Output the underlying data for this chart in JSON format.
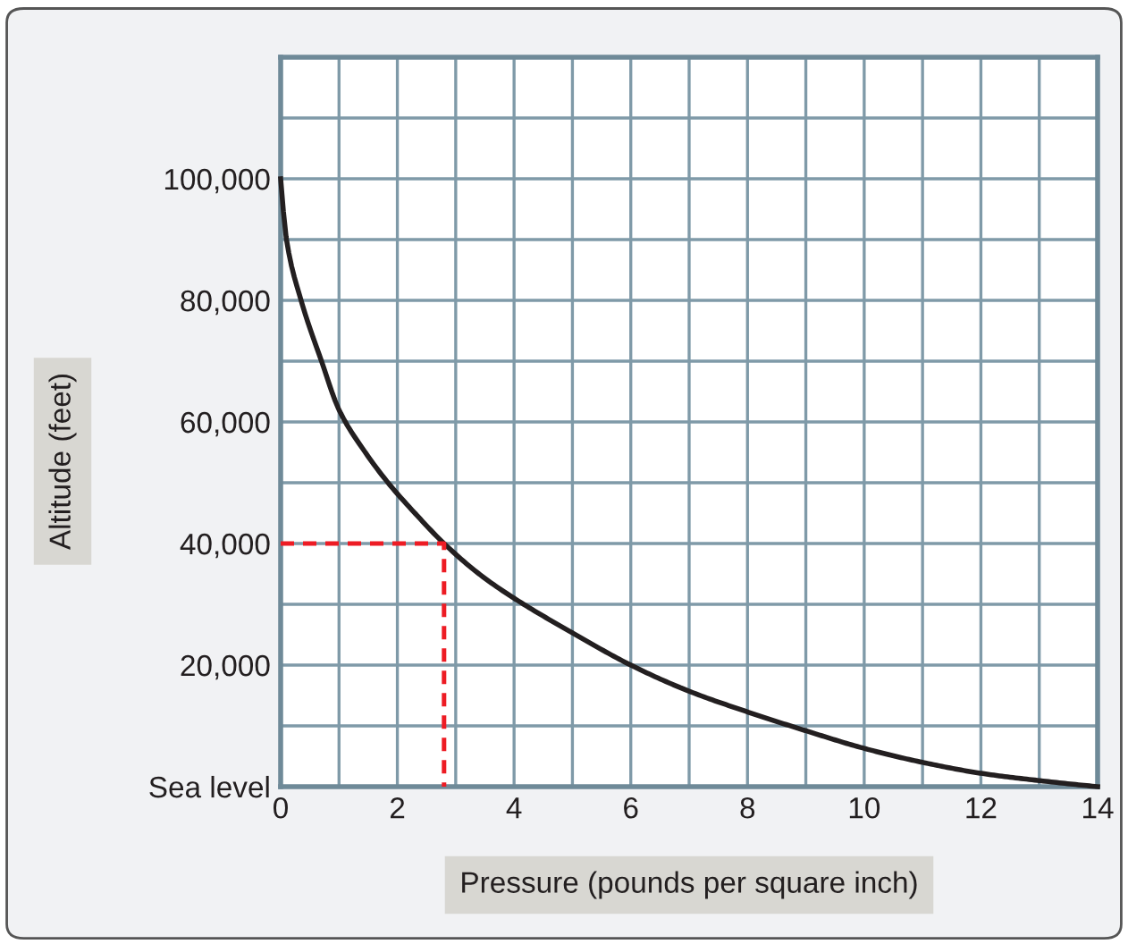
{
  "chart_data": {
    "type": "line",
    "xlabel": "Pressure (pounds per square inch)",
    "ylabel": "Altitude (feet)",
    "xlim": [
      0,
      14
    ],
    "ylim": [
      0,
      120000
    ],
    "xticks": [
      0,
      {
        "value": 1,
        "label": null
      },
      2,
      {
        "value": 3,
        "label": null
      },
      4,
      {
        "value": 5,
        "label": null
      },
      6,
      {
        "value": 7,
        "label": null
      },
      8,
      {
        "value": 9,
        "label": null
      },
      10,
      {
        "value": 11,
        "label": null
      },
      12,
      {
        "value": 13,
        "label": null
      },
      14
    ],
    "yticks": [
      {
        "value": 0,
        "label": "Sea level"
      },
      {
        "value": 10000,
        "label": null
      },
      {
        "value": 20000,
        "label": "20,000"
      },
      {
        "value": 30000,
        "label": null
      },
      {
        "value": 40000,
        "label": "40,000"
      },
      {
        "value": 50000,
        "label": null
      },
      {
        "value": 60000,
        "label": "60,000"
      },
      {
        "value": 70000,
        "label": null
      },
      {
        "value": 80000,
        "label": "80,000"
      },
      {
        "value": 90000,
        "label": null
      },
      {
        "value": 100000,
        "label": "100,000"
      },
      {
        "value": 110000,
        "label": null
      },
      {
        "value": 120000,
        "label": null
      }
    ],
    "grid": true,
    "series": [
      {
        "color": "#231f20",
        "line_style": "solid",
        "x": [
          0,
          0.1,
          0.35,
          0.7,
          1,
          1.45,
          1.84,
          2.3,
          2.8,
          3.4,
          4,
          5,
          6,
          7,
          8,
          9,
          10,
          11,
          12,
          13,
          14
        ],
        "values": [
          100000,
          90000,
          80000,
          70000,
          62000,
          55000,
          50000,
          45000,
          40000,
          35000,
          31000,
          25300,
          20000,
          15700,
          12300,
          9200,
          6300,
          4000,
          2200,
          1000,
          0
        ]
      },
      {
        "color": "#ed1c24",
        "line_style": "dashed",
        "x": [
          0,
          2.8,
          2.8
        ],
        "values": [
          40000,
          40000,
          0
        ]
      }
    ]
  }
}
